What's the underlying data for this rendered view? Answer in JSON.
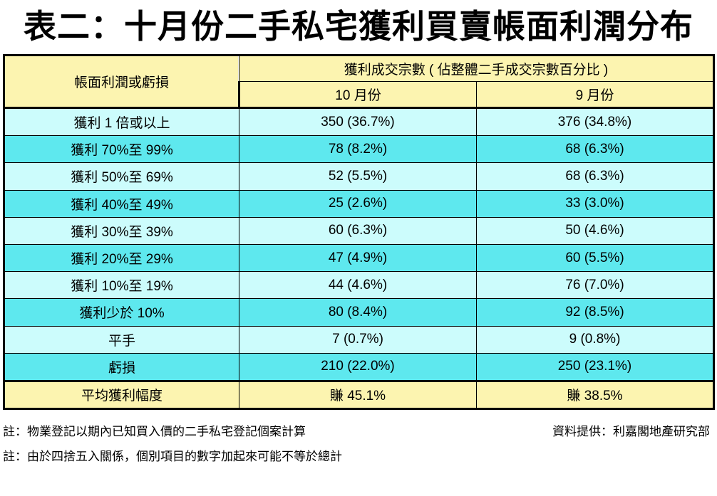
{
  "title": "表二：十月份二手私宅獲利買賣帳面利潤分布",
  "table": {
    "header": {
      "row_label": "帳面利潤或虧損",
      "group_label": "獲利成交宗數 ( 佔整體二手成交宗數百分比 )",
      "col_oct": "10 月份",
      "col_sep": "9 月份"
    },
    "rows": [
      {
        "label": "獲利 1 倍或以上",
        "oct": "350 (36.7%)",
        "sep": "376 (34.8%)"
      },
      {
        "label": "獲利 70%至 99%",
        "oct": "78 (8.2%)",
        "sep": "68 (6.3%)"
      },
      {
        "label": "獲利 50%至 69%",
        "oct": "52 (5.5%)",
        "sep": "68 (6.3%)"
      },
      {
        "label": "獲利 40%至 49%",
        "oct": "25 (2.6%)",
        "sep": "33 (3.0%)"
      },
      {
        "label": "獲利 30%至 39%",
        "oct": "60 (6.3%)",
        "sep": "50 (4.6%)"
      },
      {
        "label": "獲利 20%至 29%",
        "oct": "47 (4.9%)",
        "sep": "60 (5.5%)"
      },
      {
        "label": "獲利 10%至 19%",
        "oct": "44 (4.6%)",
        "sep": "76 (7.0%)"
      },
      {
        "label": "獲利少於 10%",
        "oct": "80 (8.4%)",
        "sep": "92 (8.5%)"
      },
      {
        "label": "平手",
        "oct": "7 (0.7%)",
        "sep": "9 (0.8%)"
      },
      {
        "label": "虧損",
        "oct": "210 (22.0%)",
        "sep": "250 (23.1%)"
      }
    ],
    "footer": {
      "label": "平均獲利幅度",
      "oct": "賺 45.1%",
      "sep": "賺 38.5%"
    }
  },
  "notes": {
    "note1": "註：物業登記以期內已知買入價的二手私宅登記個案計算",
    "source": "資料提供：利嘉閣地產研究部",
    "note2": "註：由於四捨五入關係，個別項目的數字加起來可能不等於總計"
  },
  "colors": {
    "header_bg": "#fcf4b0",
    "row_light": "#ccfcfc",
    "row_dark": "#5ee8ee"
  }
}
